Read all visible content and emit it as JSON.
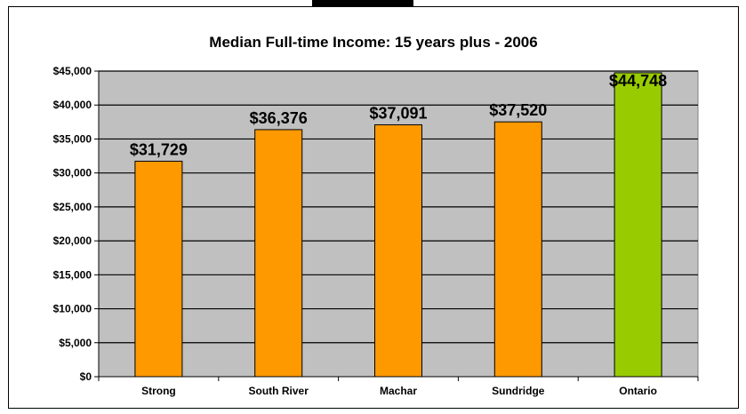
{
  "chart_data": {
    "type": "bar",
    "title": "Median Full-time Income: 15 years plus - 2006",
    "categories": [
      "Strong",
      "South River",
      "Machar",
      "Sundridge",
      "Ontario"
    ],
    "values": [
      31729,
      36376,
      37091,
      37520,
      44748
    ],
    "value_labels": [
      "$31,729",
      "$36,376",
      "$37,091",
      "$37,520",
      "$44,748"
    ],
    "bar_colors": [
      "#FF9900",
      "#FF9900",
      "#FF9900",
      "#FF9900",
      "#99CC00"
    ],
    "ylim": [
      0,
      45000
    ],
    "y_ticks": [
      0,
      5000,
      10000,
      15000,
      20000,
      25000,
      30000,
      35000,
      40000,
      45000
    ],
    "y_tick_labels": [
      "$0",
      "$5,000",
      "$10,000",
      "$15,000",
      "$20,000",
      "$25,000",
      "$30,000",
      "$35,000",
      "$40,000",
      "$45,000"
    ],
    "grid": true,
    "plot_background": "#C0C0C0",
    "xlabel": "",
    "ylabel": ""
  }
}
